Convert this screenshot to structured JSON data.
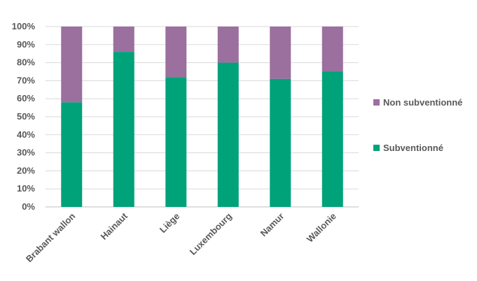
{
  "chart_data": {
    "type": "bar",
    "stacked": true,
    "normalized": true,
    "categories": [
      "Brabant wallon",
      "Hainaut",
      "Liège",
      "Luxembourg",
      "Namur",
      "Wallonie"
    ],
    "series": [
      {
        "name": "Subventionné",
        "values": [
          58,
          86,
          72,
          80,
          71,
          75
        ],
        "color": "#00A27A"
      },
      {
        "name": "Non subventionné",
        "values": [
          42,
          14,
          28,
          20,
          29,
          25
        ],
        "color": "#9B6F9E"
      }
    ],
    "y_ticks": [
      "0%",
      "10%",
      "20%",
      "30%",
      "40%",
      "50%",
      "60%",
      "70%",
      "80%",
      "90%",
      "100%"
    ],
    "ylim": [
      0,
      100
    ],
    "grid": true,
    "legend_position": "right"
  }
}
